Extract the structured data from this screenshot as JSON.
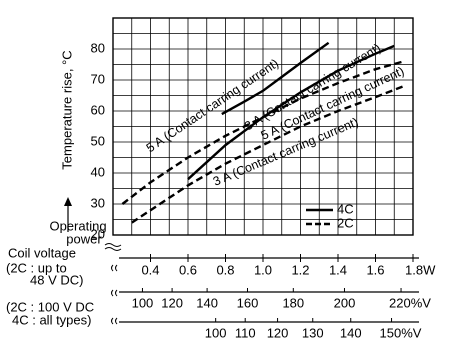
{
  "chart_data": {
    "type": "line",
    "y_label": "Temperature rise, °C",
    "x_label": [
      "Operating",
      "power"
    ],
    "xlim": [
      0.2,
      1.8
    ],
    "xticks": [
      0.4,
      0.6,
      0.8,
      {
        "value": 1,
        "label": "1.0"
      },
      1.2,
      1.4,
      1.6,
      {
        "value": 1.8,
        "label": "1.8W"
      }
    ],
    "minor_xticks": [
      0.3,
      0.5,
      0.7,
      0.9,
      1.1,
      1.3,
      1.5,
      1.7
    ],
    "ylim": [
      20,
      90
    ],
    "yticks": [
      20,
      30,
      40,
      50,
      60,
      70,
      80
    ],
    "minor_yticks": [
      25,
      35,
      45,
      55,
      65,
      75,
      85
    ],
    "grid": true,
    "legend": "lower right",
    "series": [
      {
        "name": "4C",
        "dash": "solid",
        "color": "#000000",
        "curves": [
          {
            "label": "5 A (Contact carring current)",
            "x": [
              0.78,
              0.9,
              1.0,
              1.1,
              1.2,
              1.35
            ],
            "values": [
              59,
              63,
              66.5,
              71,
              75.5,
              82
            ]
          },
          {
            "label": "3 A (Contact carring current)",
            "x": [
              0.6,
              0.8,
              1.0,
              1.2,
              1.4,
              1.6,
              1.7
            ],
            "values": [
              38,
              49,
              58,
              66,
              73,
              78.5,
              81
            ]
          }
        ]
      },
      {
        "name": "2C",
        "dash": "dashed",
        "color": "#000000",
        "curves": [
          {
            "label": "5 A (Contact carring current)",
            "x": [
              0.25,
              0.4,
              0.6,
              0.8,
              1.0,
              1.2,
              1.4,
              1.6,
              1.75
            ],
            "values": [
              30,
              37,
              45,
              52,
              58,
              64,
              69,
              73.5,
              76
            ]
          },
          {
            "label": "3 A (Contact carring current)",
            "x": [
              0.3,
              0.4,
              0.6,
              0.8,
              1.0,
              1.2,
              1.4,
              1.6,
              1.75
            ],
            "values": [
              24,
              28,
              36,
              43,
              49,
              55,
              60,
              64.5,
              68
            ]
          }
        ]
      }
    ],
    "coil_voltage_label": "Coil voltage",
    "secondary_axes": [
      {
        "labels": [
          "(2C : up to",
          "48 V DC)"
        ],
        "scale": "square",
        "xlim": [
          75,
          224
        ],
        "xticks": [
          100,
          120,
          140,
          160,
          180,
          200,
          {
            "value": 220,
            "label": "220%V"
          }
        ]
      },
      {
        "labels": [
          "(2C : 100 V DC",
          "4C : all types)"
        ],
        "scale": "square",
        "xlim": [
          52,
          155
        ],
        "xticks": [
          100,
          110,
          120,
          130,
          140,
          {
            "value": 150,
            "label": "150%V"
          }
        ]
      }
    ]
  }
}
